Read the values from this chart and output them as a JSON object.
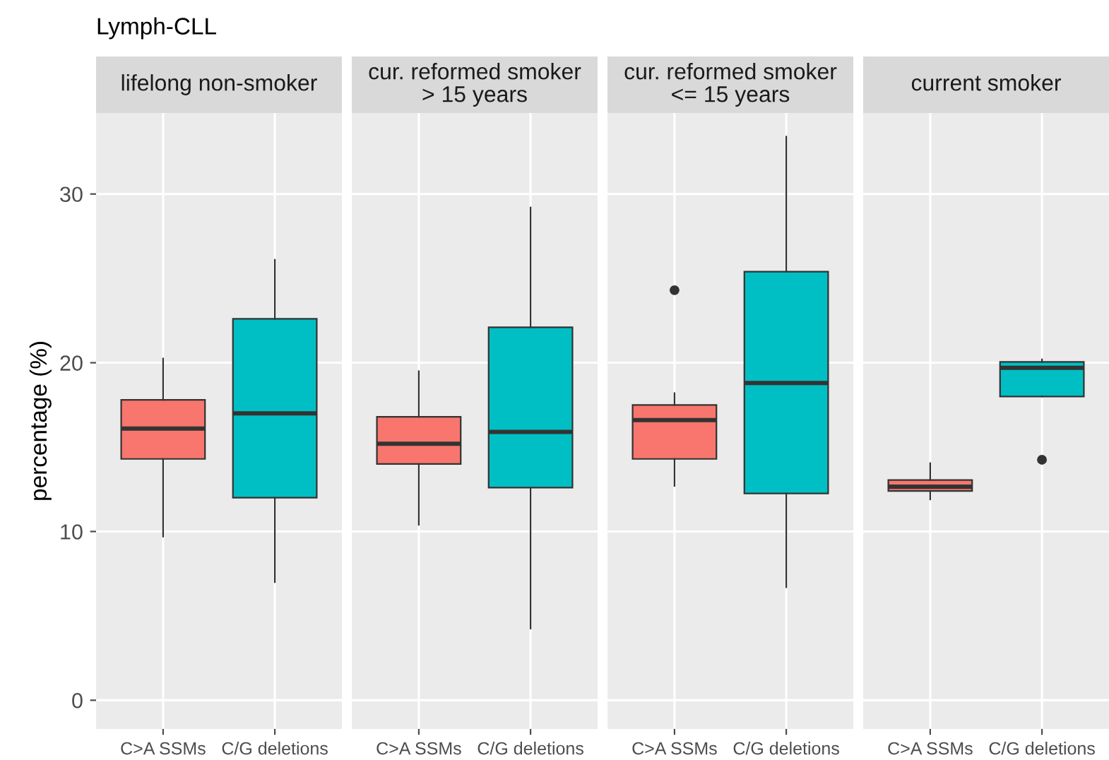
{
  "chart_data": [
    {
      "type": "box",
      "title": "lifelong non-smoker",
      "ylabel": "percentage (%)",
      "annotations": [
        "Lymph-CLL"
      ],
      "categories": [
        "C>A SSMs",
        "C/G deletions"
      ],
      "colors": [
        "#f8766d",
        "#00bfc4"
      ],
      "ylim": [
        -1.7,
        34.8
      ],
      "yticks": [
        0,
        10,
        20,
        30
      ],
      "grid": true,
      "boxes": [
        {
          "low": 9.7,
          "q1": 14.3,
          "median": 16.1,
          "q3": 17.8,
          "high": 20.25
        },
        {
          "low": 7.0,
          "q1": 12.0,
          "median": 17.0,
          "q3": 22.6,
          "high": 26.1
        }
      ]
    },
    {
      "type": "box",
      "title": "cur. reformed smoker\n> 15 years",
      "categories": [
        "C>A SSMs",
        "C/G deletions"
      ],
      "colors": [
        "#f8766d",
        "#00bfc4"
      ],
      "ylim": [
        -1.7,
        34.8
      ],
      "yticks": [
        0,
        10,
        20,
        30
      ],
      "grid": true,
      "tick_labels": "x",
      "boxes": [
        {
          "low": 10.4,
          "q1": 14.0,
          "median": 15.2,
          "q3": 16.8,
          "high": 19.5
        },
        {
          "low": 4.25,
          "q1": 12.6,
          "median": 15.9,
          "q3": 22.1,
          "high": 29.2
        }
      ]
    },
    {
      "type": "box",
      "title": "cur. reformed smoker\n<= 15 years",
      "categories": [
        "C>A SSMs",
        "C/G deletions"
      ],
      "colors": [
        "#f8766d",
        "#00bfc4"
      ],
      "ylim": [
        -1.7,
        34.8
      ],
      "yticks": [
        0,
        10,
        20,
        30
      ],
      "grid": true,
      "tick_labels": "x",
      "boxes": [
        {
          "low": 12.7,
          "q1": 14.3,
          "median": 16.6,
          "q3": 17.5,
          "high": 18.2,
          "outliers": [
            24.3
          ]
        },
        {
          "low": 6.7,
          "q1": 12.25,
          "median": 18.8,
          "q3": 25.4,
          "high": 33.4
        }
      ]
    },
    {
      "type": "box",
      "title": "current smoker",
      "categories": [
        "C>A SSMs",
        "C/G deletions"
      ],
      "colors": [
        "#f8766d",
        "#00bfc4"
      ],
      "ylim": [
        -1.7,
        34.8
      ],
      "yticks": [
        0,
        10,
        20,
        30
      ],
      "grid": true,
      "tick_labels": "x",
      "boxes": [
        {
          "low": 11.9,
          "q1": 12.4,
          "median": 12.65,
          "q3": 13.05,
          "high": 14.05
        },
        {
          "low": 18.0,
          "q1": 18.0,
          "median": 19.7,
          "q3": 20.05,
          "high": 20.2,
          "outliers": [
            14.25
          ]
        }
      ]
    }
  ]
}
